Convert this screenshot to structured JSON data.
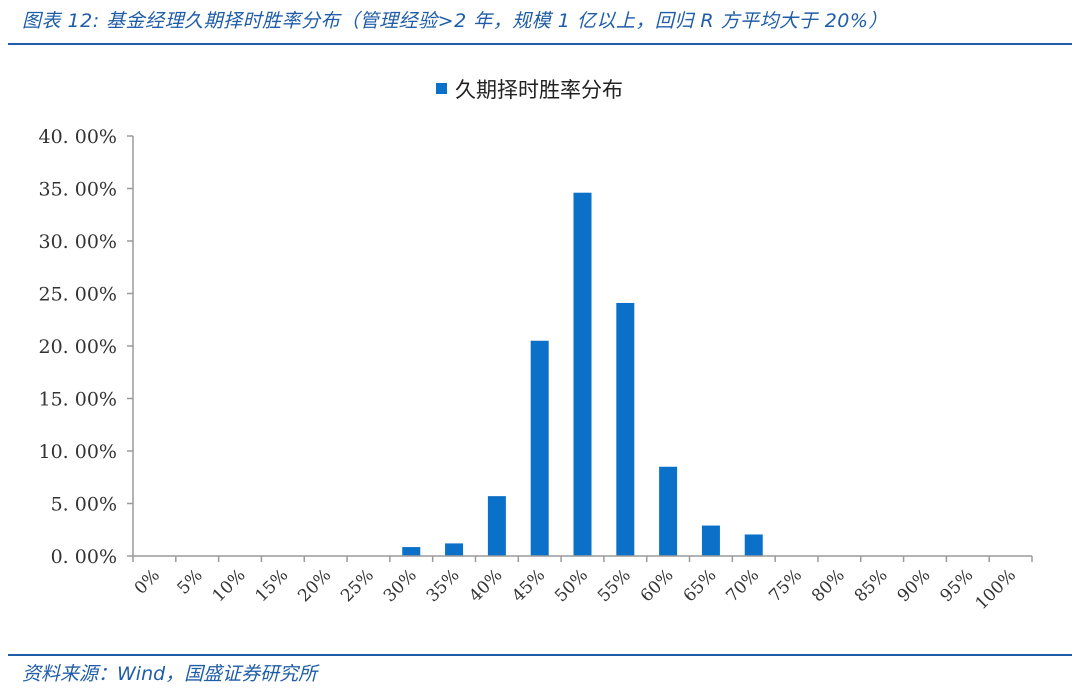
{
  "caption": "图表 12: 基金经理久期择时胜率分布（管理经验>2 年，规模 1 亿以上，回归 R 方平均大于 20%）",
  "source": "资料来源：Wind，国盛证券研究所",
  "colors": {
    "accent": "#1f5da8",
    "bar": "#0a70c8",
    "axis": "#9a9a9a"
  },
  "chart_data": {
    "type": "bar",
    "title": "",
    "xlabel": "",
    "ylabel": "",
    "legend": {
      "placement": "top-center"
    },
    "grid": false,
    "categories": [
      "0%",
      "5%",
      "10%",
      "15%",
      "20%",
      "25%",
      "30%",
      "35%",
      "40%",
      "45%",
      "50%",
      "55%",
      "60%",
      "65%",
      "70%",
      "75%",
      "80%",
      "85%",
      "90%",
      "95%",
      "100%"
    ],
    "series": [
      {
        "name": "久期择时胜率分布",
        "values": [
          0,
          0,
          0,
          0,
          0,
          0,
          0.85,
          1.2,
          5.7,
          20.5,
          34.6,
          24.1,
          8.5,
          2.9,
          2.05,
          0,
          0,
          0,
          0,
          0,
          0
        ]
      }
    ],
    "ylim": [
      0,
      40
    ],
    "yticks": [
      0,
      5,
      10,
      15,
      20,
      25,
      30,
      35,
      40
    ],
    "ytick_labels": [
      "0. 00%",
      "5. 00%",
      "10. 00%",
      "15. 00%",
      "20. 00%",
      "25. 00%",
      "30. 00%",
      "35. 00%",
      "40. 00%"
    ]
  }
}
